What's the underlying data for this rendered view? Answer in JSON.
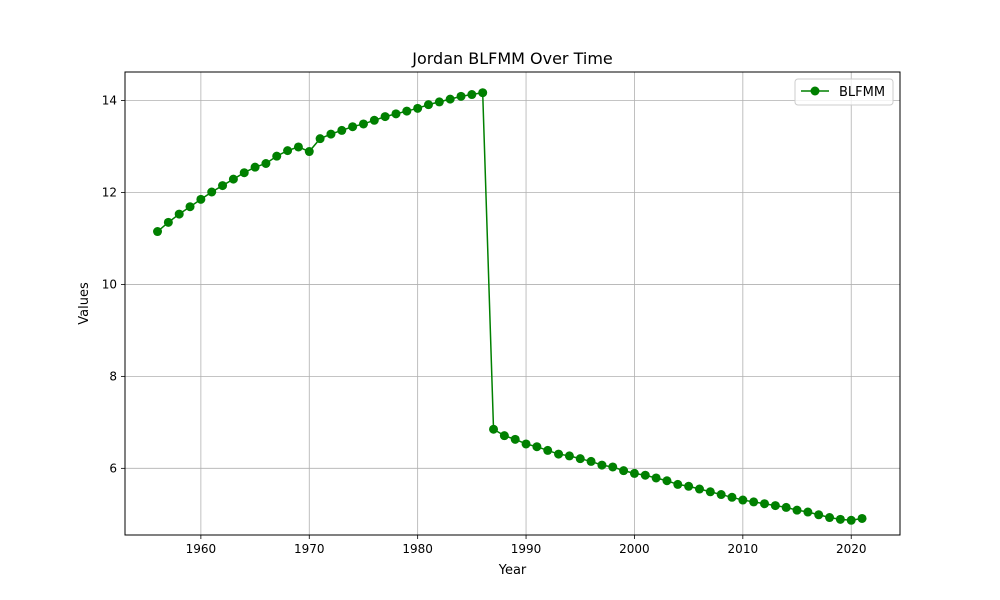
{
  "chart_data": {
    "type": "line",
    "title": "Jordan BLFMM Over Time",
    "xlabel": "Year",
    "ylabel": "Values",
    "xlim": [
      1953,
      2024.5
    ],
    "ylim": [
      4.55,
      14.62
    ],
    "xticks": [
      1960,
      1970,
      1980,
      1990,
      2000,
      2010,
      2020
    ],
    "yticks": [
      6,
      8,
      10,
      12,
      14
    ],
    "grid": true,
    "legend_position": "top-right",
    "series": [
      {
        "name": "BLFMM",
        "color": "#008000",
        "marker": "circle",
        "x": [
          1956,
          1957,
          1958,
          1959,
          1960,
          1961,
          1962,
          1963,
          1964,
          1965,
          1966,
          1967,
          1968,
          1969,
          1970,
          1971,
          1972,
          1973,
          1974,
          1975,
          1976,
          1977,
          1978,
          1979,
          1980,
          1981,
          1982,
          1983,
          1984,
          1985,
          1986,
          1987,
          1988,
          1989,
          1990,
          1991,
          1992,
          1993,
          1994,
          1995,
          1996,
          1997,
          1998,
          1999,
          2000,
          2001,
          2002,
          2003,
          2004,
          2005,
          2006,
          2007,
          2008,
          2009,
          2010,
          2011,
          2012,
          2013,
          2014,
          2015,
          2016,
          2017,
          2018,
          2019,
          2020,
          2021
        ],
        "values": [
          11.15,
          11.35,
          11.53,
          11.69,
          11.85,
          12.01,
          12.15,
          12.29,
          12.43,
          12.55,
          12.63,
          12.79,
          12.91,
          12.99,
          12.89,
          13.17,
          13.27,
          13.35,
          13.43,
          13.49,
          13.57,
          13.65,
          13.71,
          13.77,
          13.83,
          13.91,
          13.97,
          14.03,
          14.09,
          14.13,
          14.17,
          6.85,
          6.71,
          6.63,
          6.53,
          6.47,
          6.39,
          6.31,
          6.27,
          6.21,
          6.15,
          6.07,
          6.03,
          5.95,
          5.89,
          5.85,
          5.79,
          5.73,
          5.65,
          5.61,
          5.55,
          5.49,
          5.43,
          5.37,
          5.31,
          5.27,
          5.23,
          5.19,
          5.15,
          5.09,
          5.05,
          4.99,
          4.93,
          4.89,
          4.87,
          4.91
        ]
      }
    ]
  }
}
